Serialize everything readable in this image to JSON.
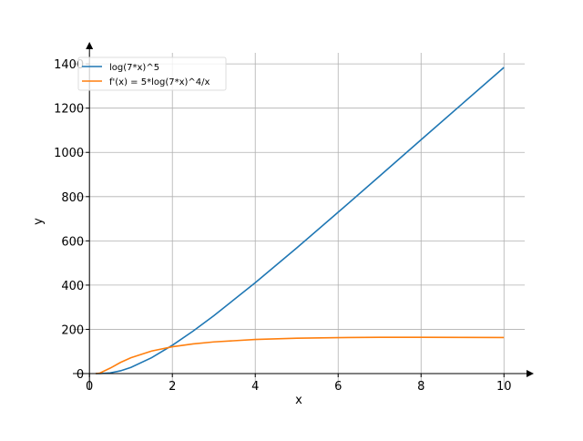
{
  "chart_data": {
    "type": "line",
    "x": [
      0.15,
      0.25,
      0.5,
      0.75,
      1,
      1.5,
      2,
      2.5,
      3,
      4,
      5,
      6,
      7,
      8,
      9,
      10
    ],
    "series": [
      {
        "name": "log(7*x)^5",
        "color": "#1f77b4",
        "values": [
          0,
          0.05,
          3.09,
          12.5,
          27.9,
          71.9,
          128,
          192.1,
          261.6,
          410.8,
          568,
          729.5,
          892.8,
          1057,
          1220.7,
          1384
        ]
      },
      {
        "name": "f'(x) = 5*log(7*x)^4/x",
        "color": "#ff7f0e",
        "values": [
          0,
          1.96,
          24.6,
          50.4,
          71.7,
          101.9,
          121.3,
          134.2,
          143.2,
          154.1,
          159.8,
          162.6,
          163.9,
          164.1,
          163.7,
          162.9
        ]
      }
    ],
    "xlabel": "x",
    "ylabel": "y",
    "xlim": [
      -0.4,
      10.5
    ],
    "ylim": [
      -70,
      1450
    ],
    "xticks": [
      0,
      2,
      4,
      6,
      8,
      10
    ],
    "yticks": [
      0,
      200,
      400,
      600,
      800,
      1000,
      1200,
      1400
    ],
    "grid": true,
    "legend": "upper-left"
  }
}
